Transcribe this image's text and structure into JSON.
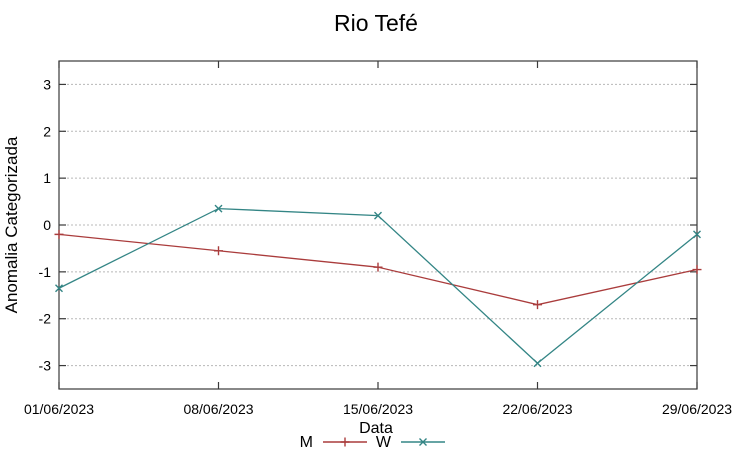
{
  "chart_data": {
    "type": "line",
    "title": "Rio Tefé",
    "xlabel": "Data",
    "ylabel": "Anomalia Categorizada",
    "categories": [
      "01/06/2023",
      "08/06/2023",
      "15/06/2023",
      "22/06/2023",
      "29/06/2023"
    ],
    "series": [
      {
        "name": "M",
        "color": "#aa3c3c",
        "marker": "plus",
        "values": [
          -0.2,
          -0.55,
          -0.9,
          -1.7,
          -0.95
        ]
      },
      {
        "name": "W",
        "color": "#338585",
        "marker": "cross",
        "values": [
          -1.35,
          0.35,
          0.2,
          -2.95,
          -0.2
        ]
      }
    ],
    "ylim": [
      -3.5,
      3.5
    ],
    "yticks": [
      -3,
      -2,
      -1,
      0,
      1,
      2,
      3
    ],
    "grid": "horizontal dotted gridlines at integer y values",
    "legend_position": "bottom-center"
  },
  "colors": {
    "background": "#ffffff",
    "border": "#3a3a3a",
    "grid": "#b8b8b8",
    "text": "#000000"
  }
}
